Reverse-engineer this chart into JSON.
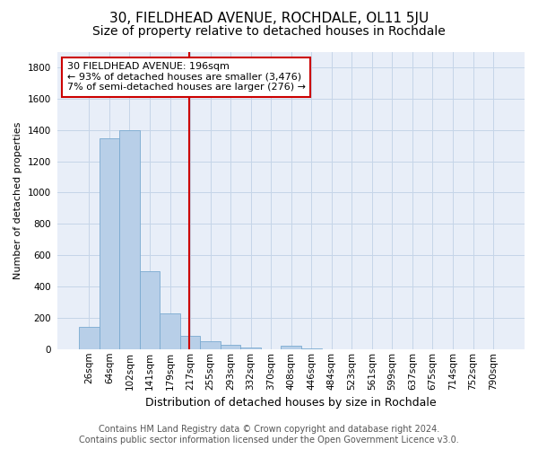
{
  "title": "30, FIELDHEAD AVENUE, ROCHDALE, OL11 5JU",
  "subtitle": "Size of property relative to detached houses in Rochdale",
  "xlabel": "Distribution of detached houses by size in Rochdale",
  "ylabel": "Number of detached properties",
  "footer_line1": "Contains HM Land Registry data © Crown copyright and database right 2024.",
  "footer_line2": "Contains public sector information licensed under the Open Government Licence v3.0.",
  "bar_labels": [
    "26sqm",
    "64sqm",
    "102sqm",
    "141sqm",
    "179sqm",
    "217sqm",
    "255sqm",
    "293sqm",
    "332sqm",
    "370sqm",
    "408sqm",
    "446sqm",
    "484sqm",
    "523sqm",
    "561sqm",
    "599sqm",
    "637sqm",
    "675sqm",
    "714sqm",
    "752sqm",
    "790sqm"
  ],
  "bar_values": [
    140,
    1345,
    1400,
    500,
    230,
    85,
    50,
    25,
    10,
    0,
    20,
    5,
    0,
    0,
    0,
    0,
    0,
    0,
    0,
    0,
    0
  ],
  "bar_color": "#b8cfe8",
  "bar_edge_color": "#7aaad0",
  "grid_color": "#c5d5e8",
  "background_color": "#e8eef8",
  "annotation_box_color": "#cc0000",
  "annotation_text_line1": "30 FIELDHEAD AVENUE: 196sqm",
  "annotation_text_line2": "← 93% of detached houses are smaller (3,476)",
  "annotation_text_line3": "7% of semi-detached houses are larger (276) →",
  "vline_x": 4.97,
  "vline_color": "#cc0000",
  "ylim": [
    0,
    1900
  ],
  "yticks": [
    0,
    200,
    400,
    600,
    800,
    1000,
    1200,
    1400,
    1600,
    1800
  ],
  "title_fontsize": 11,
  "subtitle_fontsize": 10,
  "annotation_fontsize": 8,
  "ylabel_fontsize": 8,
  "xlabel_fontsize": 9,
  "footer_fontsize": 7,
  "tick_fontsize": 7.5
}
